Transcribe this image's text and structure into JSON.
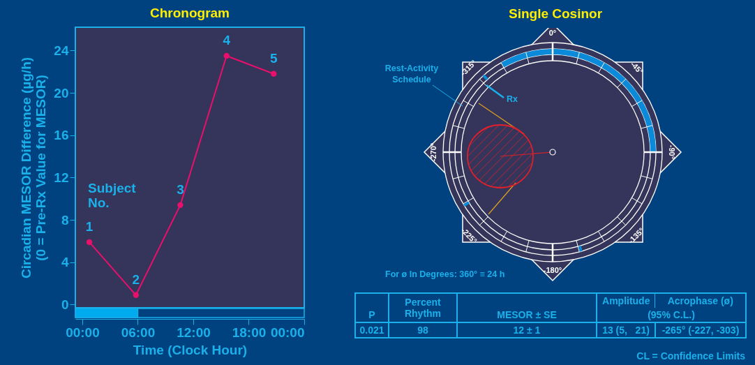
{
  "chart_data": [
    {
      "type": "line",
      "title": "Chronogram",
      "xlabel": "Time (Clock Hour)",
      "ylabel": "Circadian MESOR Difference (µg/h)\n(0 = Pre-Rx Value for MESOR)",
      "x": [
        0.76,
        5.8,
        10.6,
        15.6,
        20.7
      ],
      "values": [
        5.9,
        0.9,
        9.4,
        23.5,
        21.8
      ],
      "color": "#e8106a",
      "marker": "circle",
      "xlim": [
        -0.75,
        24
      ],
      "xticks": [
        {
          "value": 0,
          "label": "00:00"
        },
        {
          "value": 6,
          "label": "06:00"
        },
        {
          "value": 12,
          "label": "12:00"
        },
        {
          "value": 18,
          "label": "18:00"
        },
        {
          "value": 24,
          "label": "00:00"
        }
      ],
      "ylim": [
        -0.3,
        26.2
      ],
      "yticks": [
        0,
        4,
        8,
        12,
        16,
        20,
        24
      ],
      "annotations": [
        {
          "text": "1",
          "x": 0.76,
          "y": 5.9
        },
        {
          "text": "2",
          "x": 5.8,
          "y": 0.9
        },
        {
          "text": "3",
          "x": 10.6,
          "y": 9.4
        },
        {
          "text": "4",
          "x": 15.6,
          "y": 23.5
        },
        {
          "text": "5",
          "x": 20.7,
          "y": 21.8
        },
        "Subject\nNo."
      ]
    },
    {
      "type": "other",
      "title": "Single Cosinor",
      "annotations": [
        "0°",
        "-45°",
        "-90°",
        "-135°",
        "-180°",
        "-225°",
        "-270°",
        "-315°",
        "Rest-Activity\nSchedule",
        "Rx",
        "For ø In Degrees: 360° ≡ 24 h",
        "P",
        "Percent\nRhythm",
        "MESOR ± SE",
        "Amplitude",
        "Acrophase (ø)",
        "(95% C.L.)",
        "0.021",
        "98",
        "12 ± 1",
        "13 (5,   21)",
        "-265° (-227, -303)",
        "CL = Confidence Limits"
      ]
    }
  ]
}
